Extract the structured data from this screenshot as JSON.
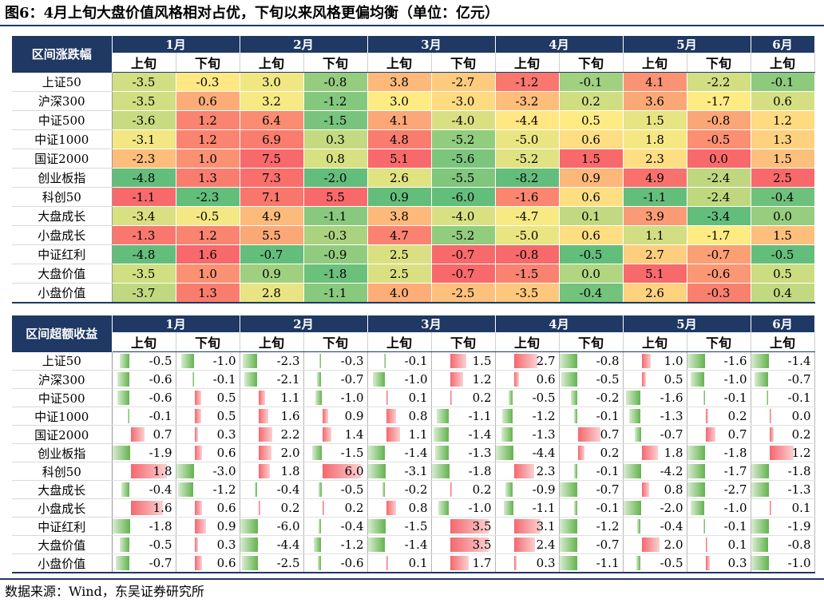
{
  "title": "图6：4月上旬大盘价值风格相对占优，下旬以来风格更偏均衡（单位：亿元）",
  "source": "数据来源：Wind，东吴证券研究所",
  "months": [
    "1月",
    "2月",
    "3月",
    "4月",
    "5月",
    "6月"
  ],
  "sub_labels": [
    "上旬",
    "下旬"
  ],
  "colors": {
    "header_bg": "#1f3864",
    "pos_bar": "#f4686e",
    "neg_bar": "#63b34e"
  },
  "table1": {
    "corner": "区间涨跌幅",
    "rows": [
      {
        "label": "上证50",
        "values": [
          "-3.5",
          "-0.3",
          "3.0",
          "-0.8",
          "3.8",
          "-2.7",
          "-1.2",
          "-0.1",
          "4.1",
          "-2.2",
          "-0.1"
        ]
      },
      {
        "label": "沪深300",
        "values": [
          "-3.5",
          "0.6",
          "3.2",
          "-1.2",
          "3.0",
          "-3.0",
          "-3.2",
          "0.2",
          "3.6",
          "-1.7",
          "0.6"
        ]
      },
      {
        "label": "中证500",
        "values": [
          "-3.6",
          "1.2",
          "6.4",
          "-1.5",
          "4.1",
          "-4.0",
          "-4.4",
          "0.5",
          "1.5",
          "-0.8",
          "1.2"
        ]
      },
      {
        "label": "中证1000",
        "values": [
          "-3.1",
          "1.2",
          "6.9",
          "0.3",
          "4.8",
          "-5.2",
          "-5.0",
          "0.6",
          "1.8",
          "-0.5",
          "1.3"
        ]
      },
      {
        "label": "国证2000",
        "values": [
          "-2.3",
          "1.0",
          "7.5",
          "0.8",
          "5.1",
          "-5.6",
          "-5.2",
          "1.5",
          "2.3",
          "0.0",
          "1.5"
        ]
      },
      {
        "label": "创业板指",
        "values": [
          "-4.8",
          "1.3",
          "7.3",
          "-2.0",
          "2.6",
          "-5.5",
          "-8.2",
          "0.9",
          "4.9",
          "-2.4",
          "2.5"
        ]
      },
      {
        "label": "科创50",
        "values": [
          "-1.1",
          "-2.3",
          "7.1",
          "5.5",
          "0.9",
          "-6.0",
          "-1.6",
          "0.6",
          "-1.1",
          "-2.4",
          "-0.4"
        ]
      },
      {
        "label": "大盘成长",
        "values": [
          "-3.4",
          "-0.5",
          "4.9",
          "-1.1",
          "3.8",
          "-4.0",
          "-4.7",
          "0.1",
          "3.9",
          "-3.4",
          "0.0"
        ]
      },
      {
        "label": "小盘成长",
        "values": [
          "-1.3",
          "1.2",
          "5.5",
          "-0.3",
          "4.7",
          "-5.2",
          "-5.0",
          "0.6",
          "1.1",
          "-1.7",
          "1.5"
        ]
      },
      {
        "label": "中证红利",
        "values": [
          "-4.8",
          "1.6",
          "-0.7",
          "-0.9",
          "2.5",
          "-0.7",
          "-0.8",
          "-0.5",
          "2.7",
          "-0.7",
          "-0.5"
        ]
      },
      {
        "label": "大盘价值",
        "values": [
          "-3.5",
          "1.0",
          "0.9",
          "-1.8",
          "2.5",
          "-0.7",
          "-1.5",
          "0.0",
          "5.1",
          "-0.6",
          "0.5"
        ]
      },
      {
        "label": "小盘价值",
        "values": [
          "-3.7",
          "1.3",
          "2.8",
          "-1.1",
          "4.0",
          "-2.5",
          "-3.5",
          "-0.4",
          "2.6",
          "-0.3",
          "0.4"
        ]
      }
    ]
  },
  "table2": {
    "corner": "区间超额收益",
    "rows": [
      {
        "label": "上证50",
        "values": [
          "-0.5",
          "-1.0",
          "-2.3",
          "-0.3",
          "-0.1",
          "1.5",
          "2.7",
          "-0.8",
          "1.0",
          "-1.6",
          "-1.4"
        ]
      },
      {
        "label": "沪深300",
        "values": [
          "-0.6",
          "-0.1",
          "-2.1",
          "-0.7",
          "-1.0",
          "1.2",
          "0.6",
          "-0.5",
          "0.5",
          "-1.0",
          "-0.7"
        ]
      },
      {
        "label": "中证500",
        "values": [
          "-0.6",
          "0.5",
          "1.1",
          "-1.0",
          "0.1",
          "0.2",
          "-0.5",
          "-0.2",
          "-1.6",
          "-0.1",
          "-0.1"
        ]
      },
      {
        "label": "中证1000",
        "values": [
          "-0.1",
          "0.5",
          "1.6",
          "0.9",
          "0.8",
          "-1.1",
          "-1.2",
          "-0.1",
          "-1.3",
          "0.2",
          "0.0"
        ]
      },
      {
        "label": "国证2000",
        "values": [
          "0.7",
          "0.3",
          "2.2",
          "1.4",
          "1.1",
          "-1.4",
          "-1.3",
          "0.7",
          "-0.7",
          "0.7",
          "0.2"
        ]
      },
      {
        "label": "创业板指",
        "values": [
          "-1.9",
          "0.6",
          "2.0",
          "-1.5",
          "-1.4",
          "-1.3",
          "-4.4",
          "0.2",
          "1.8",
          "-1.8",
          "1.2"
        ]
      },
      {
        "label": "科创50",
        "values": [
          "1.8",
          "-3.0",
          "1.8",
          "6.0",
          "-3.1",
          "-1.8",
          "2.3",
          "-0.1",
          "-4.2",
          "-1.7",
          "-1.8"
        ]
      },
      {
        "label": "大盘成长",
        "values": [
          "-0.4",
          "-1.2",
          "-0.4",
          "-0.5",
          "-0.2",
          "0.2",
          "-0.9",
          "-0.7",
          "0.8",
          "-2.7",
          "-1.3"
        ]
      },
      {
        "label": "小盘成长",
        "values": [
          "1.6",
          "0.6",
          "0.2",
          "0.2",
          "0.8",
          "-1.0",
          "-1.1",
          "-0.1",
          "-2.0",
          "-1.0",
          "0.1"
        ]
      },
      {
        "label": "中证红利",
        "values": [
          "-1.8",
          "0.9",
          "-6.0",
          "-0.4",
          "-1.5",
          "3.5",
          "3.1",
          "-1.2",
          "-0.4",
          "-0.1",
          "-1.9"
        ]
      },
      {
        "label": "大盘价值",
        "values": [
          "-0.5",
          "0.3",
          "-4.4",
          "-1.2",
          "-1.4",
          "3.5",
          "2.4",
          "-0.7",
          "2.0",
          "0.1",
          "-0.8"
        ]
      },
      {
        "label": "小盘价值",
        "values": [
          "-0.7",
          "0.6",
          "-2.5",
          "-0.6",
          "0.1",
          "1.7",
          "0.3",
          "-1.1",
          "-0.5",
          "0.3",
          "-1.0"
        ]
      }
    ]
  }
}
